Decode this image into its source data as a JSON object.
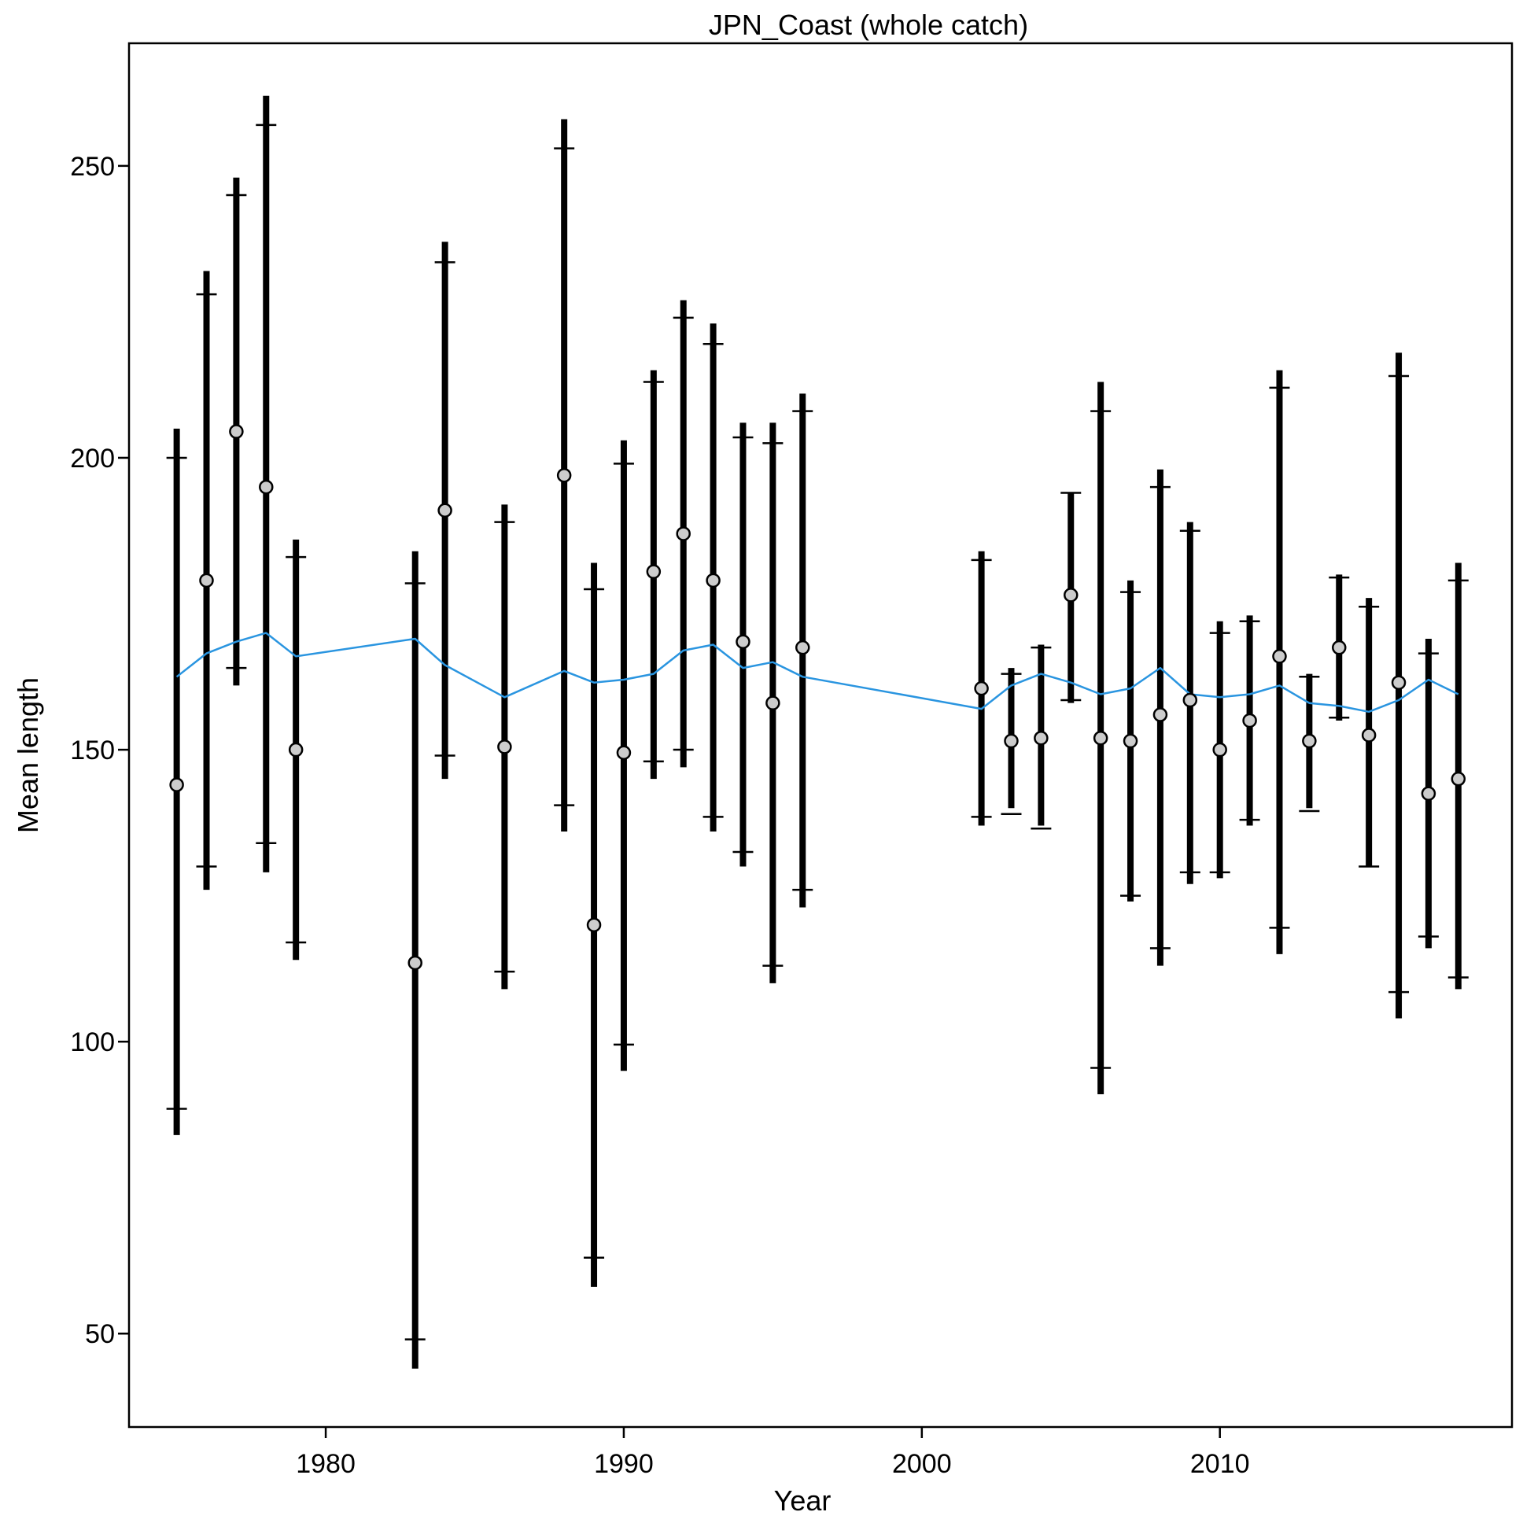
{
  "chart_data": {
    "type": "scatter",
    "title": "JPN_Coast (whole catch)",
    "xlabel": "Year",
    "ylabel": "Mean length",
    "xlim": [
      1973.4,
      2019.8
    ],
    "ylim": [
      34,
      271
    ],
    "xticks": [
      1980,
      1990,
      2000,
      2010
    ],
    "yticks": [
      50,
      100,
      150,
      200,
      250
    ],
    "grid": false,
    "legend": "none",
    "colors": {
      "observed_fill": "#cccccc",
      "observed_edge": "#000000",
      "interval": "#000000",
      "expected_line": "#2a95e0"
    },
    "series": [
      {
        "kind": "observed_with_intervals",
        "x": [
          1975,
          1976,
          1977,
          1978,
          1979,
          1983,
          1984,
          1986,
          1988,
          1989,
          1990,
          1991,
          1992,
          1993,
          1994,
          1995,
          1996,
          2002,
          2003,
          2004,
          2005,
          2006,
          2007,
          2008,
          2009,
          2010,
          2011,
          2012,
          2013,
          2014,
          2015,
          2016,
          2017,
          2018
        ],
        "y": [
          144,
          179,
          204.5,
          195,
          150,
          113.5,
          191,
          150.5,
          197,
          120,
          149.5,
          180.5,
          187,
          179,
          168.5,
          158,
          167.5,
          160.5,
          151.5,
          152,
          176.5,
          152,
          151.5,
          156,
          158.5,
          150,
          155,
          166,
          151.5,
          167.5,
          152.5,
          161.5,
          142.5,
          145
        ],
        "outer_low": [
          84,
          126,
          161,
          129,
          114,
          44,
          145,
          109,
          136,
          58,
          95,
          145,
          147,
          136,
          130,
          110,
          123,
          137,
          140,
          137,
          158,
          91,
          124,
          113,
          127,
          128,
          137,
          115,
          140,
          155,
          130,
          104,
          116,
          109
        ],
        "outer_high": [
          205,
          232,
          248,
          262,
          186,
          184,
          237,
          192,
          258,
          182,
          203,
          215,
          227,
          223,
          206,
          206,
          211,
          184,
          164,
          168,
          194,
          213,
          179,
          198,
          189,
          172,
          173,
          215,
          163,
          180,
          176,
          218,
          169,
          182
        ],
        "inner_low": [
          88.5,
          130,
          164,
          134,
          117,
          49,
          149,
          112,
          140.5,
          63,
          99.5,
          148,
          150,
          138.5,
          132.5,
          113,
          126,
          138.5,
          139,
          136.5,
          158.5,
          95.5,
          125,
          116,
          129,
          129,
          138,
          119.5,
          139.5,
          155.5,
          130,
          108.5,
          118,
          111
        ],
        "inner_high": [
          200,
          228,
          245,
          257,
          183,
          178.5,
          233.5,
          189,
          253,
          177.5,
          199,
          213,
          224,
          219.5,
          203.5,
          202.5,
          208,
          182.5,
          163,
          167.5,
          194,
          208,
          177,
          195,
          187.5,
          170,
          172,
          212,
          162.5,
          179.5,
          174.5,
          214,
          166.5,
          179
        ]
      },
      {
        "kind": "expected_line",
        "x": [
          1975,
          1976,
          1977,
          1978,
          1979,
          1983,
          1984,
          1986,
          1988,
          1989,
          1990,
          1991,
          1992,
          1993,
          1994,
          1995,
          1996,
          2002,
          2003,
          2004,
          2005,
          2006,
          2007,
          2008,
          2009,
          2010,
          2011,
          2012,
          2013,
          2014,
          2015,
          2016,
          2017,
          2018
        ],
        "y": [
          162.5,
          166.5,
          168.5,
          170,
          166,
          169,
          164.5,
          159,
          163.5,
          161.5,
          162,
          163,
          167,
          168,
          164,
          165,
          162.5,
          157,
          161,
          163,
          161.5,
          159.5,
          160.5,
          164,
          159.5,
          159,
          159.5,
          161,
          158,
          157.5,
          156.5,
          158.5,
          162,
          159.5
        ]
      }
    ]
  }
}
